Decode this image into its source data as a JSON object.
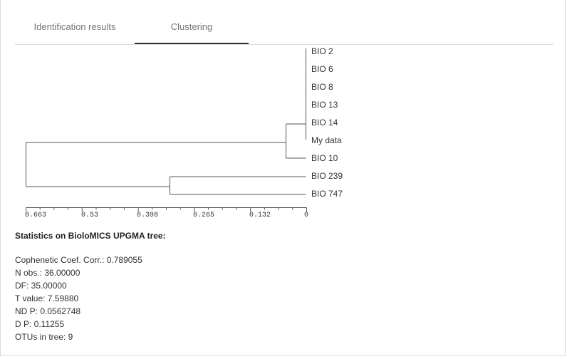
{
  "tabs": [
    {
      "label": "Identification results",
      "active": false
    },
    {
      "label": "Clustering",
      "active": true
    }
  ],
  "dendrogram": {
    "leaves": [
      "BIO 2",
      "BIO 6",
      "BIO 8",
      "BIO 13",
      "BIO 14",
      "My data",
      "BIO 10",
      "BIO 239",
      "BIO 747"
    ],
    "axis_ticks": [
      "0.663",
      "0.53",
      "0.398",
      "0.265",
      "0.132",
      "0"
    ],
    "axis_max": 0.663
  },
  "stats": {
    "title": "Statistics on BioloMICS UPGMA tree:",
    "lines": [
      "Cophenetic Coef. Corr.: 0.789055",
      "N obs.: 36.00000",
      "DF: 35.00000",
      "T value: 7.59880",
      "ND P: 0.0562748",
      "D P: 0.11255",
      "OTUs in tree: 9"
    ]
  },
  "colors": {
    "tab_indicator": "#333333",
    "tree_line": "#555555",
    "divider": "#dddddd"
  }
}
